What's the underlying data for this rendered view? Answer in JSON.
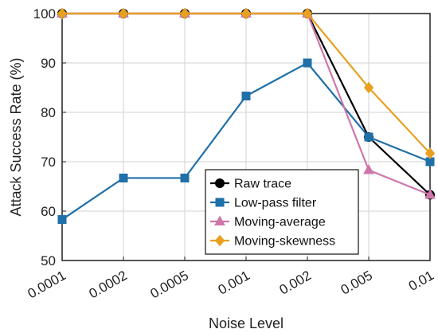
{
  "chart_data": {
    "type": "line",
    "categories": [
      "0.0001",
      "0.0002",
      "0.0005",
      "0.001",
      "0.002",
      "0.005",
      "0.01"
    ],
    "xlabel": "Noise Level",
    "ylabel": "Attack Success Rate (%)",
    "ylim": [
      50,
      100
    ],
    "yticks": [
      "50",
      "60",
      "70",
      "80",
      "90",
      "100"
    ],
    "grid": true,
    "legend_position": "bottom-right",
    "series": [
      {
        "name": "Raw trace",
        "color": "#000000",
        "marker": "circle",
        "values": [
          100,
          100,
          100,
          100,
          100,
          75,
          63.3
        ]
      },
      {
        "name": "Low-pass filter",
        "color": "#1f6fa8",
        "marker": "square",
        "values": [
          58.3,
          66.7,
          66.7,
          83.3,
          90,
          75,
          70
        ]
      },
      {
        "name": "Moving-average",
        "color": "#cc77aa",
        "marker": "triangle",
        "values": [
          100,
          100,
          100,
          100,
          100,
          68.3,
          63.3
        ]
      },
      {
        "name": "Moving-skewness",
        "color": "#e8a020",
        "marker": "diamond",
        "values": [
          100,
          100,
          100,
          100,
          100,
          85,
          71.7
        ]
      }
    ]
  }
}
